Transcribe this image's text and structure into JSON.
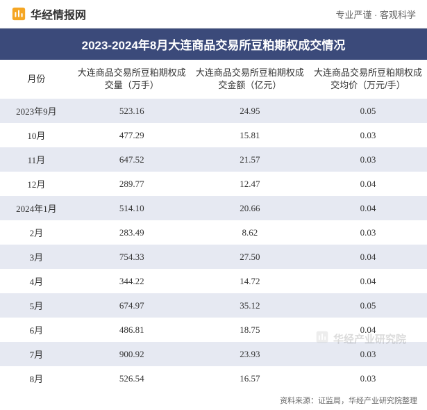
{
  "header": {
    "brand": "华经情报网",
    "slogan": "专业严谨 · 客观科学"
  },
  "title": "2023-2024年8月大连商品交易所豆粕期权成交情况",
  "columns": {
    "c0": "月份",
    "c1": "大连商品交易所豆粕期权成交量（万手）",
    "c2": "大连商品交易所豆粕期权成交金额（亿元）",
    "c3": "大连商品交易所豆粕期权成交均价（万元/手）"
  },
  "rows": [
    {
      "month": "2023年9月",
      "volume": "523.16",
      "amount": "24.95",
      "avg": "0.05"
    },
    {
      "month": "10月",
      "volume": "477.29",
      "amount": "15.81",
      "avg": "0.03"
    },
    {
      "month": "11月",
      "volume": "647.52",
      "amount": "21.57",
      "avg": "0.03"
    },
    {
      "month": "12月",
      "volume": "289.77",
      "amount": "12.47",
      "avg": "0.04"
    },
    {
      "month": "2024年1月",
      "volume": "514.10",
      "amount": "20.66",
      "avg": "0.04"
    },
    {
      "month": "2月",
      "volume": "283.49",
      "amount": "8.62",
      "avg": "0.03"
    },
    {
      "month": "3月",
      "volume": "754.33",
      "amount": "27.50",
      "avg": "0.04"
    },
    {
      "month": "4月",
      "volume": "344.22",
      "amount": "14.72",
      "avg": "0.04"
    },
    {
      "month": "5月",
      "volume": "674.97",
      "amount": "35.12",
      "avg": "0.05"
    },
    {
      "month": "6月",
      "volume": "486.81",
      "amount": "18.75",
      "avg": "0.04"
    },
    {
      "month": "7月",
      "volume": "900.92",
      "amount": "23.93",
      "avg": "0.03"
    },
    {
      "month": "8月",
      "volume": "526.54",
      "amount": "16.57",
      "avg": "0.03"
    }
  ],
  "footer": "资料来源：证监局，华经产业研究院整理",
  "watermark": "华经产业研究院",
  "styling": {
    "title_bg": "#3b4a7a",
    "title_color": "#ffffff",
    "row_odd_bg": "#e6e9f2",
    "row_even_bg": "#ffffff",
    "text_color": "#333333",
    "muted_color": "#666666",
    "title_fontsize": 17,
    "body_fontsize": 13,
    "header_fontsize": 13,
    "brand_color": "#f5a623"
  }
}
